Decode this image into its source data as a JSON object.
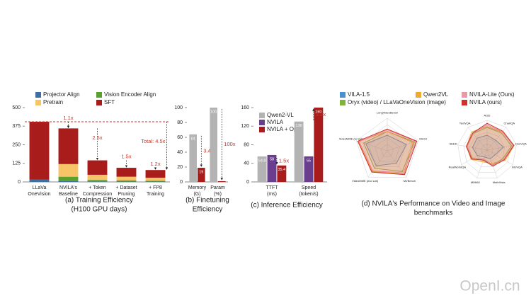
{
  "chart_data": [
    {
      "type": "stacked_bar",
      "caption": [
        "(a) Training Efficiency",
        "(H100 GPU days)"
      ],
      "categories": [
        [
          "LLaVa",
          "OneVision"
        ],
        [
          "NVILA's",
          "Baseline"
        ],
        [
          "+ Token",
          "Compression"
        ],
        [
          "+ Dataset",
          "Pruning"
        ],
        [
          "+ FP8",
          "Training"
        ]
      ],
      "series": [
        {
          "name": "Projector Align",
          "color": "#3f6f9f",
          "values": [
            15,
            5,
            3,
            2,
            2
          ]
        },
        {
          "name": "Vision Encoder Align",
          "color": "#5aa02c",
          "values": [
            0,
            30,
            10,
            8,
            6
          ]
        },
        {
          "name": "Pretrain",
          "color": "#f7c467",
          "values": [
            0,
            85,
            35,
            25,
            20
          ]
        },
        {
          "name": "SFT",
          "color": "#a81c1c",
          "values": [
            390,
            240,
            97,
            60,
            52
          ]
        }
      ],
      "ylim": [
        0,
        500
      ],
      "yticks": [
        0,
        125,
        250,
        375,
        500
      ],
      "reference_line": 405,
      "annotations": [
        "1.1x",
        "2.5x",
        "1.5x",
        "1.2x"
      ],
      "total_annotation": "Total: 4.5x"
    },
    {
      "type": "bar",
      "caption": [
        "(b) Finetuning",
        "Efficiency"
      ],
      "categories": [
        [
          "Memory",
          "(G)"
        ],
        [
          "Param",
          "(%)"
        ]
      ],
      "series": [
        {
          "color": "#b3b3b3",
          "values": [
            64,
            100
          ]
        },
        {
          "color": "#a81c1c",
          "values": [
            19,
            1
          ],
          "value_labels": [
            "19",
            null
          ]
        }
      ],
      "ylim": [
        0,
        100
      ],
      "yticks": [
        0,
        20,
        40,
        60,
        80,
        100
      ],
      "annotations": [
        "3.4x",
        "100x"
      ]
    },
    {
      "type": "bar",
      "caption": [
        "(c) Inference Efficiency"
      ],
      "categories": [
        [
          "TTFT",
          "(ms)"
        ],
        [
          "Speed",
          "(token/s)"
        ]
      ],
      "series": [
        {
          "name": "Qwen2-VL",
          "color": "#b3b3b3",
          "values": [
            54.8,
            130
          ]
        },
        {
          "name": "NVILA",
          "color": "#6a3d8f",
          "values": [
            58,
            55
          ]
        },
        {
          "name": "NVILA + Opt",
          "color": "#a81c1c",
          "values": [
            35.4,
            160
          ]
        }
      ],
      "ylim": [
        0,
        160
      ],
      "yticks": [
        0,
        40,
        80,
        120,
        160
      ],
      "annotations": [
        "1.5x",
        "1.2x"
      ]
    },
    {
      "type": "radar",
      "caption": [
        "(d) NVILA's Performance on Video and Image",
        "benchmarks"
      ],
      "series": [
        {
          "name": "VILA-1.5",
          "color": "#4a8fd4"
        },
        {
          "name": "Oryx (video) / LLaVaOneVision (image)",
          "color": "#7fb33c"
        },
        {
          "name": "Qwen2VL",
          "color": "#f0a830"
        },
        {
          "name": "NVILA-Lite (Ours)",
          "color": "#e89aab"
        },
        {
          "name": "NVILA (ours)",
          "color": "#d0312d"
        }
      ],
      "panels": [
        {
          "axes": [
            "LongVideoBench",
            "MLVU",
            "MVBench",
            "VideoMME (w/o sub)",
            "VideoMME (w/ sub)"
          ],
          "rlim": [
            30,
            72
          ],
          "values": [
            [
              50,
              56,
              50,
              54,
              59
            ],
            [
              55,
              67,
              63,
              58,
              62
            ],
            [
              55,
              65,
              67,
              63,
              69
            ],
            [
              57,
              69,
              65,
              62,
              68
            ],
            [
              58,
              70,
              68,
              64,
              70
            ]
          ]
        },
        {
          "axes": [
            "AI2D",
            "ChartQA",
            "DocVQA",
            "InfoVQA",
            "MathVista",
            "MMMU",
            "RealWorldQA",
            "SEED",
            "TextVQA"
          ],
          "rlim": [
            20,
            100
          ],
          "values": [
            [
              60,
              55,
              65,
              45,
              45,
              40,
              50,
              60,
              62
            ],
            [
              81,
              80,
              87,
              68,
              63,
              48,
              66,
              75,
              78
            ],
            [
              83,
              83,
              94,
              76,
              58,
              54,
              70,
              76,
              84
            ],
            [
              88,
              84,
              91,
              71,
              64,
              45,
              65,
              74,
              79
            ],
            [
              92,
              86,
              93,
              73,
              66,
              49,
              68,
              77,
              80
            ]
          ]
        }
      ]
    }
  ],
  "watermark": "OpenI.cn"
}
